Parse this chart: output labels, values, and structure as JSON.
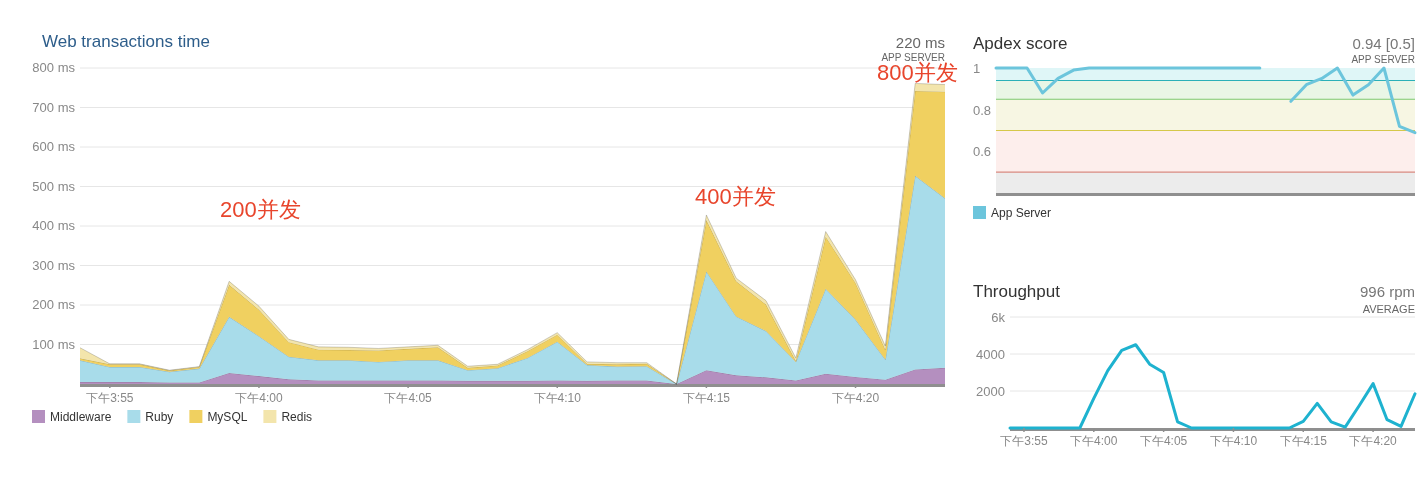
{
  "chart_data": [
    {
      "type": "area",
      "stacked": true,
      "title": "Web transactions time",
      "annotations": [
        "220 ms",
        "APP SERVER",
        "200并发",
        "400并发",
        "800并发"
      ],
      "categories": [
        null,
        "下午3:55",
        null,
        null,
        null,
        null,
        "下午4:00",
        null,
        null,
        null,
        null,
        "下午4:05",
        null,
        null,
        null,
        null,
        "下午4:10",
        null,
        null,
        null,
        null,
        "下午4:15",
        null,
        null,
        null,
        null,
        "下午4:20",
        null,
        null,
        null
      ],
      "series": [
        {
          "name": "Middleware",
          "color": "#b48fbf",
          "values": [
            5,
            5,
            5,
            4,
            4,
            28,
            20,
            12,
            9,
            9,
            9,
            9,
            9,
            8,
            8,
            8,
            9,
            8,
            9,
            9,
            0,
            35,
            22,
            17,
            9,
            26,
            18,
            11,
            37,
            41
          ]
        },
        {
          "name": "Ruby",
          "color": "#a8dcea",
          "values": [
            55,
            38,
            38,
            27,
            35,
            142,
            101,
            57,
            51,
            51,
            47,
            51,
            51,
            27,
            32,
            58,
            98,
            40,
            35,
            36,
            0,
            250,
            149,
            117,
            47,
            215,
            145,
            51,
            490,
            429
          ]
        },
        {
          "name": "MySQL",
          "color": "#f0d060",
          "values": [
            5,
            7,
            7,
            3,
            4,
            81,
            67,
            37,
            27,
            26,
            29,
            29,
            33,
            6,
            7,
            17,
            18,
            3,
            6,
            6,
            0,
            130,
            89,
            67,
            2,
            132,
            93,
            25,
            215,
            270
          ]
        },
        {
          "name": "Redis",
          "color": "#f3e5ac",
          "values": [
            27,
            1,
            1,
            1,
            1,
            9,
            9,
            7,
            7,
            7,
            5,
            5,
            5,
            4,
            3,
            4,
            5,
            5,
            4,
            3,
            0,
            13,
            8,
            10,
            8,
            13,
            8,
            9,
            19,
            18
          ]
        }
      ],
      "ylim": [
        0,
        800
      ],
      "yticks": [
        {
          "value": 100,
          "label": "100 ms"
        },
        {
          "value": 200,
          "label": "200 ms"
        },
        {
          "value": 300,
          "label": "300 ms"
        },
        {
          "value": 400,
          "label": "400 ms"
        },
        {
          "value": 500,
          "label": "500 ms"
        },
        {
          "value": 600,
          "label": "600 ms"
        },
        {
          "value": 700,
          "label": "700 ms"
        },
        {
          "value": 800,
          "label": "800 ms"
        }
      ],
      "grid": "y",
      "legend": "bottom"
    },
    {
      "type": "line",
      "title": "Apdex score",
      "annotations": [
        "0.94 [0.5]",
        "APP SERVER"
      ],
      "categories": [
        null,
        null,
        null,
        null,
        null,
        null,
        null,
        null,
        null,
        null,
        null,
        null,
        null,
        null,
        null,
        null,
        null,
        null,
        null,
        null,
        null,
        null,
        null,
        null,
        null,
        null,
        null,
        null
      ],
      "series": [
        {
          "name": "App Server",
          "color": "#6cc5dc",
          "values": [
            1,
            1,
            1,
            0.88,
            0.95,
            0.99,
            1,
            1,
            1,
            1,
            1,
            1,
            1,
            1,
            1,
            1,
            1,
            1,
            null,
            null,
            null,
            null,
            null,
            null,
            null,
            null,
            null,
            null
          ]
        },
        {
          "color": "#6cc5dc",
          "values": [
            null,
            null,
            null,
            null,
            null,
            null,
            null,
            null,
            null,
            null,
            null,
            null,
            null,
            null,
            null,
            null,
            null,
            null,
            null,
            0.84,
            0.92,
            0.95,
            1,
            0.87,
            0.92,
            1,
            0.72,
            0.69
          ]
        }
      ],
      "ylim": [
        0.4,
        1
      ],
      "yticks": [
        0.6,
        0.8,
        1
      ],
      "tick_labels": "y",
      "legend": "bottom left",
      "bands": [
        {
          "axis": "y",
          "from": 0.94,
          "to": 1,
          "color": "#dff6f7"
        },
        {
          "axis": "y",
          "from": 0.85,
          "to": 0.94,
          "color": "#e9f6e6"
        },
        {
          "axis": "y",
          "from": 0.7,
          "to": 0.85,
          "color": "#f7f6e3"
        },
        {
          "axis": "y",
          "from": 0.5,
          "to": 0.7,
          "color": "#fdeeec"
        },
        {
          "axis": "y",
          "from": 0.4,
          "to": 0.5,
          "color": "#ececec"
        }
      ],
      "ref_lines": [
        {
          "axis": "y",
          "value": 0.94,
          "color": "#2ab0b8"
        },
        {
          "axis": "y",
          "value": 0.85,
          "color": "#7cc96e"
        },
        {
          "axis": "y",
          "value": 0.7,
          "color": "#d5c84a"
        },
        {
          "axis": "y",
          "value": 0.5,
          "color": "#d88a80"
        }
      ]
    },
    {
      "type": "line",
      "title": "Throughput",
      "annotations": [
        "996 rpm",
        "AVERAGE"
      ],
      "categories": [
        null,
        "下午3:55",
        null,
        null,
        null,
        null,
        "下午4:00",
        null,
        null,
        null,
        null,
        "下午4:05",
        null,
        null,
        null,
        null,
        "下午4:10",
        null,
        null,
        null,
        null,
        "下午4:15",
        null,
        null,
        null,
        null,
        "下午4:20",
        null,
        null,
        null
      ],
      "series": [
        {
          "color": "#1eb2cf",
          "values": [
            0,
            0,
            0,
            0,
            0,
            0,
            1600,
            3100,
            4200,
            4500,
            3450,
            3000,
            330,
            0,
            0,
            0,
            0,
            0,
            0,
            0,
            0,
            360,
            1330,
            330,
            50,
            1200,
            2400,
            450,
            90,
            1850
          ]
        }
      ],
      "ylim": [
        0,
        6000
      ],
      "yticks": [
        2000,
        4000,
        {
          "value": 6000,
          "label": "6k"
        }
      ],
      "grid": "y"
    }
  ]
}
